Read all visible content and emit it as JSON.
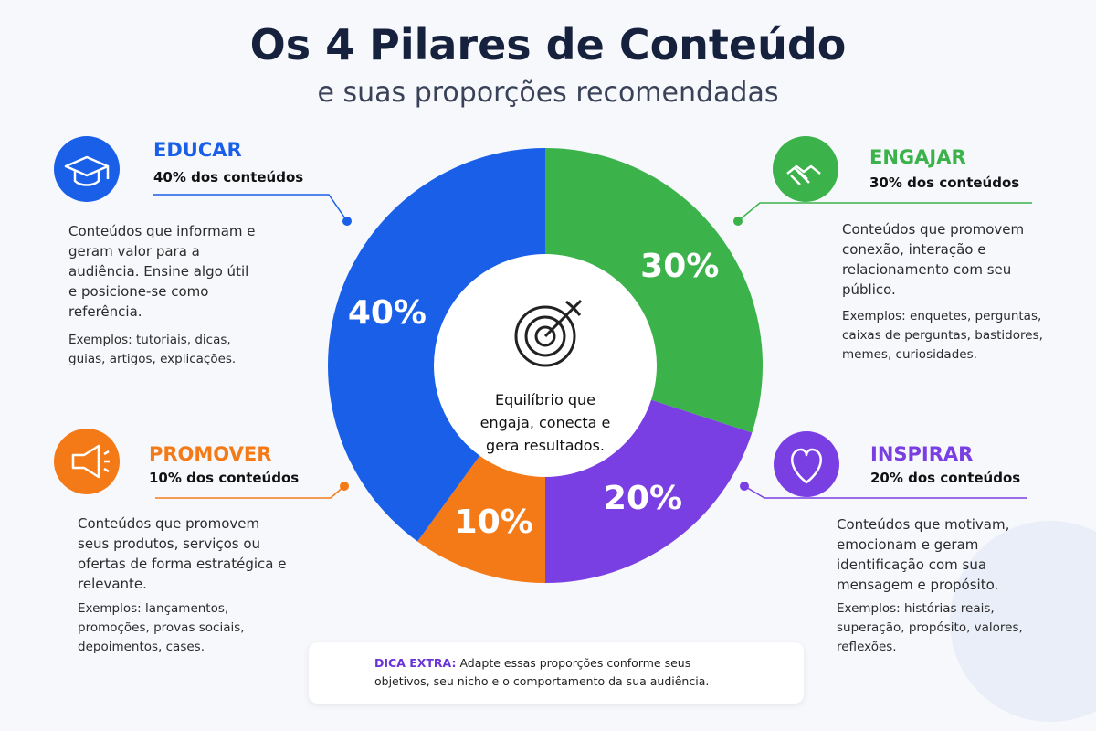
{
  "title": "Os 4 Pilares de Conteúdo",
  "subtitle": "e suas proporções recomendadas",
  "chart_data": {
    "type": "donut",
    "categories": [
      "ENGAJAR",
      "INSPIRAR",
      "PROMOVER",
      "EDUCAR"
    ],
    "values": [
      30,
      20,
      10,
      40
    ],
    "value_labels": [
      "30%",
      "20%",
      "10%",
      "40%"
    ],
    "colors": [
      "#3cb34a",
      "#7a3fe3",
      "#f47a18",
      "#1a5fe8"
    ],
    "center_text": "Equilíbrio que engaja, conecta e gera resultados."
  },
  "pillars": [
    {
      "share": "30% dos conteúdos",
      "description": "Conteúdos que promovem conexão, interação e relacionamento com seu público.",
      "examples": "Exemplos: enquetes, perguntas, caixas de perguntas, bastidores, memes, curiosidades."
    },
    {
      "share": "20% dos conteúdos",
      "description": "Conteúdos que motivam, emocionam e geram identificação com sua mensagem e propósito.",
      "examples": "Exemplos: histórias reais, superação, propósito, valores, reflexões."
    },
    {
      "share": "10% dos conteúdos",
      "description": "Conteúdos que promovem seus produtos, serviços ou ofertas de forma estratégica e relevante.",
      "examples": "Exemplos: lançamentos, promoções, provas sociais, depoimentos, cases."
    },
    {
      "share": "40% dos conteúdos",
      "description": "Conteúdos que informam e geram valor para a audiência. Ensine algo útil e posicione-se como referência.",
      "examples": "Exemplos: tutoriais, dicas, guias, artigos, explicações."
    }
  ],
  "tip": {
    "label": "DICA EXTRA:",
    "text": "Adapte essas proporções conforme seus objetivos, seu nicho e o comportamento da sua audiência."
  }
}
